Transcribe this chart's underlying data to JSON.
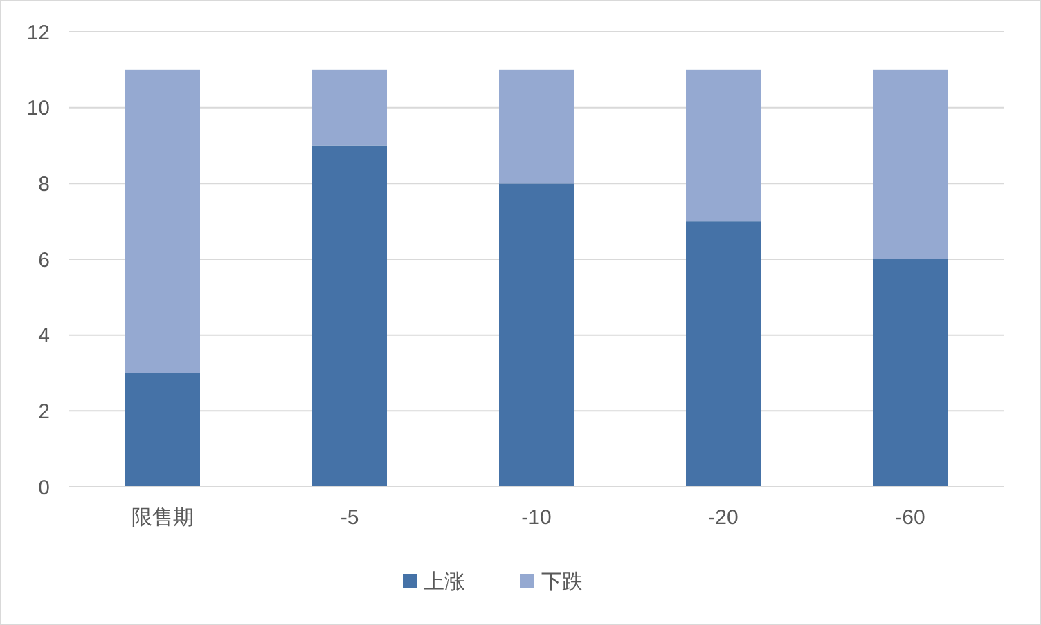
{
  "chart_data": {
    "type": "bar",
    "stacked": true,
    "categories": [
      "限售期",
      "-5",
      "-10",
      "-20",
      "-60"
    ],
    "series": [
      {
        "name": "上涨",
        "color": "#4572a7",
        "values": [
          3,
          9,
          8,
          7,
          6
        ]
      },
      {
        "name": "下跌",
        "color": "#95a9d1",
        "values": [
          8,
          2,
          3,
          4,
          5
        ]
      }
    ],
    "ylim": [
      0,
      12
    ],
    "yticks": [
      0,
      2,
      4,
      6,
      8,
      10,
      12
    ],
    "grid": "y",
    "legend": "bottom"
  }
}
